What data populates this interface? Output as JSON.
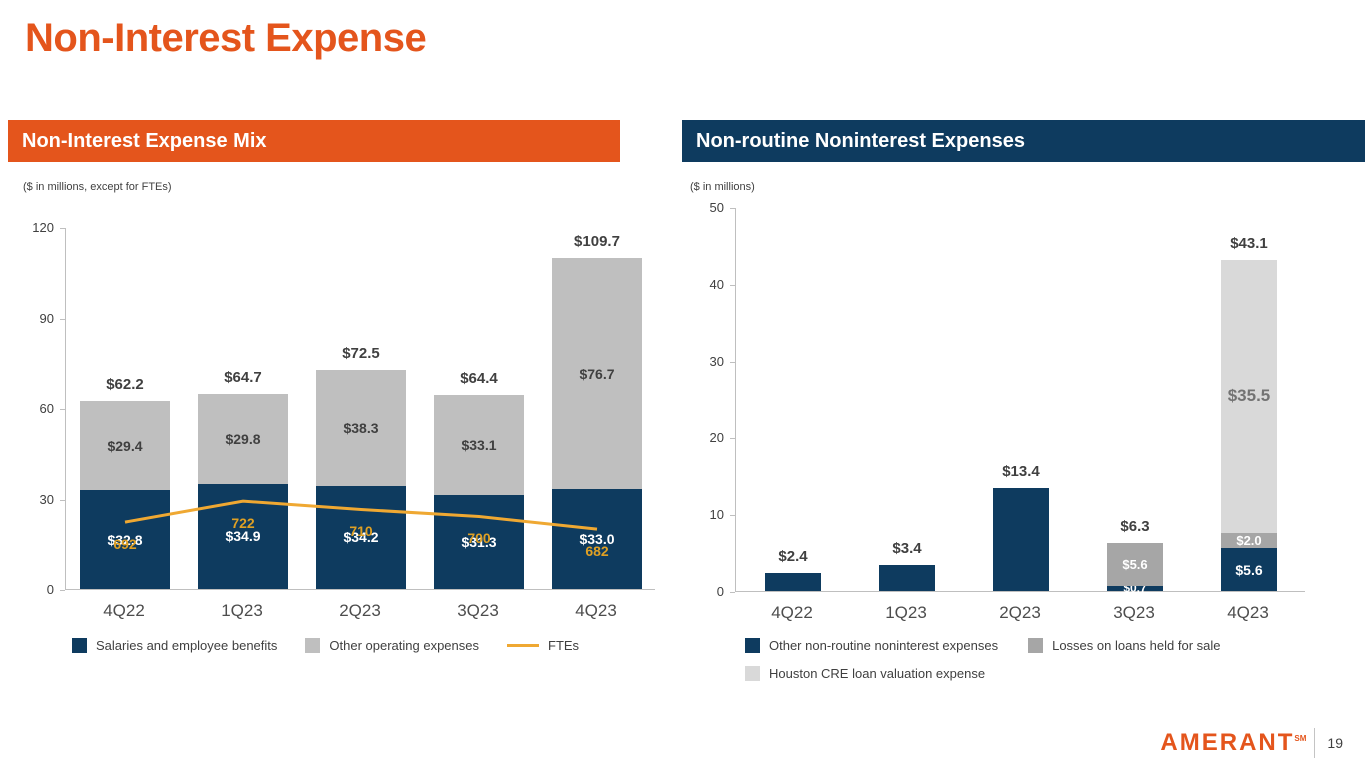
{
  "page": {
    "title": "Non-Interest Expense",
    "footer": {
      "logo_text": "AMERANT",
      "logo_sup": "SM",
      "page_number": "19"
    }
  },
  "colors": {
    "orange": "#E4551C",
    "navy": "#0E3B5F",
    "gray": "#BFBFBF",
    "mid_gray": "#A6A6A6",
    "light_gray": "#D9D9D9",
    "gold": "#EFA832"
  },
  "panels": {
    "left": {
      "header": "Non-Interest Expense Mix",
      "units_note": "($ in millions, except for FTEs)",
      "legend": [
        {
          "label": "Salaries and employee benefits",
          "swatch": "#0E3B5F",
          "type": "square"
        },
        {
          "label": "Other operating expenses",
          "swatch": "#BFBFBF",
          "type": "square"
        },
        {
          "label": "FTEs",
          "swatch": "#EFA832",
          "type": "line"
        }
      ]
    },
    "right": {
      "header": "Non-routine Noninterest Expenses",
      "units_note": "($ in millions)",
      "legend": [
        {
          "label": "Other non-routine noninterest expenses",
          "swatch": "#0E3B5F",
          "type": "square"
        },
        {
          "label": "Losses on loans held for sale",
          "swatch": "#A6A6A6",
          "type": "square"
        },
        {
          "label": "Houston CRE loan valuation expense",
          "swatch": "#D9D9D9",
          "type": "square"
        }
      ]
    }
  },
  "chart_data": [
    {
      "type": "bar",
      "title": "Non-Interest Expense Mix",
      "categories": [
        "4Q22",
        "1Q23",
        "2Q23",
        "3Q23",
        "4Q23"
      ],
      "series": [
        {
          "name": "Salaries and employee benefits",
          "color": "#0E3B5F",
          "label_color": "#FFFFFF",
          "values": [
            32.8,
            34.9,
            34.2,
            31.3,
            33.0
          ],
          "labels": [
            "$32.8",
            "$34.9",
            "$34.2",
            "$31.3",
            "$33.0"
          ]
        },
        {
          "name": "Other operating expenses",
          "color": "#BFBFBF",
          "label_color": "#404040",
          "values": [
            29.4,
            29.8,
            38.3,
            33.1,
            76.7
          ],
          "labels": [
            "$29.4",
            "$29.8",
            "$38.3",
            "$33.1",
            "$76.7"
          ]
        }
      ],
      "totals": [
        "$62.2",
        "$64.7",
        "$72.5",
        "$64.4",
        "$109.7"
      ],
      "line_series": {
        "name": "FTEs",
        "color": "#EFA832",
        "values": [
          692,
          722,
          710,
          700,
          682
        ],
        "labels": [
          "692",
          "722",
          "710",
          "700",
          "682"
        ],
        "y2lim": [
          595,
          1112
        ]
      },
      "ylim": [
        0,
        120
      ],
      "yticks": [
        0,
        30,
        60,
        90,
        120
      ],
      "grid": false,
      "legend_position": "bottom"
    },
    {
      "type": "bar",
      "title": "Non-routine Noninterest Expenses",
      "categories": [
        "4Q22",
        "1Q23",
        "2Q23",
        "3Q23",
        "4Q23"
      ],
      "series": [
        {
          "name": "Other non-routine noninterest expenses",
          "color": "#0E3B5F",
          "label_color": "#FFFFFF",
          "values": [
            2.4,
            3.4,
            13.4,
            0.7,
            5.6
          ],
          "labels": [
            "",
            "",
            "",
            "$0.7",
            "$5.6"
          ],
          "label_sizes": [
            14,
            14,
            14,
            12,
            14
          ]
        },
        {
          "name": "Losses on loans held for sale",
          "color": "#A6A6A6",
          "label_color": "#FFFFFF",
          "values": [
            0,
            0,
            0,
            5.6,
            2.0
          ],
          "labels": [
            "",
            "",
            "",
            "$5.6",
            "$2.0"
          ],
          "label_size": 13
        },
        {
          "name": "Houston CRE loan valuation expense",
          "color": "#D9D9D9",
          "label_color": "#737373",
          "values": [
            0,
            0,
            0,
            0,
            35.5
          ],
          "labels": [
            "",
            "",
            "",
            "",
            "$35.5"
          ],
          "label_size": 17
        }
      ],
      "totals": [
        "$2.4",
        "$3.4",
        "$13.4",
        "$6.3",
        "$43.1"
      ],
      "ylim": [
        0,
        50
      ],
      "yticks": [
        0,
        10,
        20,
        30,
        40,
        50
      ],
      "grid": false,
      "legend_position": "bottom"
    }
  ]
}
